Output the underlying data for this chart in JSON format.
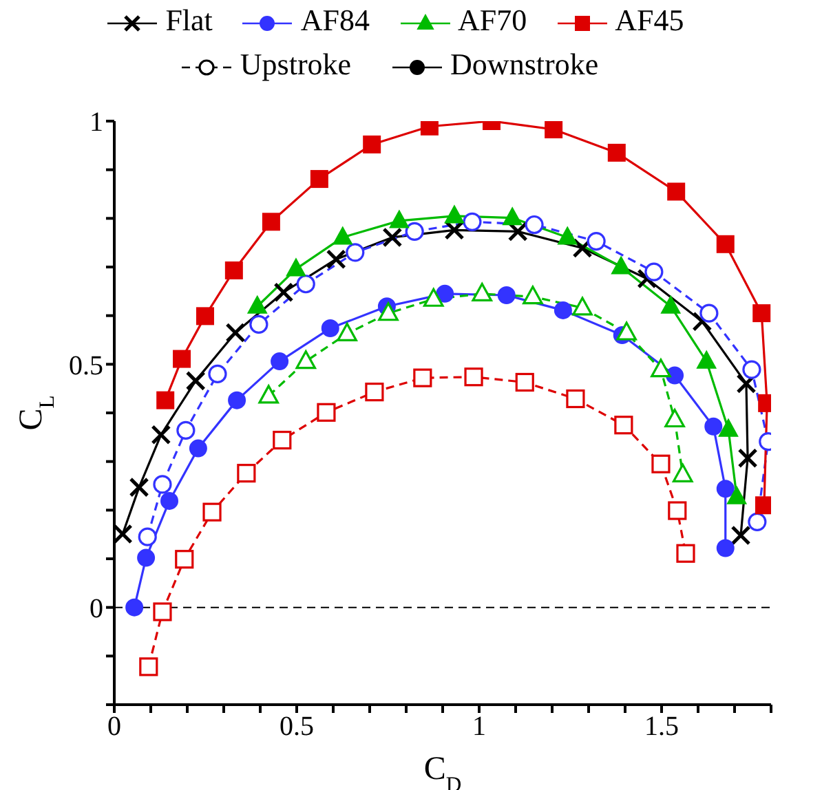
{
  "chart_data": {
    "type": "line",
    "xlabel": "C$_{D}$",
    "ylabel": "C$_{L}$",
    "xlim": [
      0,
      1.8
    ],
    "ylim": [
      -0.2,
      1
    ],
    "xticks": [
      0,
      {
        "value": 0.1,
        "label": null
      },
      {
        "value": 0.2,
        "label": null
      },
      {
        "value": 0.3,
        "label": null
      },
      {
        "value": 0.4,
        "label": null
      },
      0.5,
      {
        "value": 0.6,
        "label": null
      },
      {
        "value": 0.7,
        "label": null
      },
      {
        "value": 0.8,
        "label": null
      },
      {
        "value": 0.9,
        "label": null
      },
      1,
      {
        "value": 1.1,
        "label": null
      },
      {
        "value": 1.2,
        "label": null
      },
      {
        "value": 1.3,
        "label": null
      },
      {
        "value": 1.4,
        "label": null
      },
      1.5,
      {
        "value": 1.6,
        "label": null
      },
      {
        "value": 1.7,
        "label": null
      },
      {
        "value": 1.8,
        "label": null
      }
    ],
    "yticks": [
      {
        "value": -0.2,
        "label": null
      },
      {
        "value": -0.1,
        "label": null
      },
      0,
      {
        "value": 0.1,
        "label": null
      },
      {
        "value": 0.2,
        "label": null
      },
      {
        "value": 0.3,
        "label": null
      },
      {
        "value": 0.4,
        "label": null
      },
      0.5,
      {
        "value": 0.6,
        "label": null
      },
      {
        "value": 0.7,
        "label": null
      },
      {
        "value": 0.8,
        "label": null
      },
      {
        "value": 0.9,
        "label": null
      },
      1
    ],
    "grid": false,
    "legend": "top",
    "annotations": [
      "Upstroke",
      "Downstroke"
    ],
    "ref_lines": [
      {
        "axis": "y",
        "value": 0,
        "color": "#000000",
        "line_style": "dashed"
      }
    ],
    "series": [
      {
        "name": "Flat",
        "color": "#000000",
        "marker": "cross",
        "line_style": "solid",
        "x": [
          0.023,
          0.068,
          0.128,
          0.223,
          0.332,
          0.464,
          0.608,
          0.762,
          0.932,
          1.106,
          1.283,
          1.46,
          1.611,
          1.732,
          1.736,
          1.717
        ],
        "values": [
          0.151,
          0.247,
          0.355,
          0.466,
          0.565,
          0.648,
          0.716,
          0.761,
          0.776,
          0.773,
          0.739,
          0.676,
          0.588,
          0.46,
          0.307,
          0.148
        ]
      },
      {
        "name": "AF84",
        "color": "#3333ff",
        "marker": "circle",
        "line_style": "solid",
        "x": [
          0.055,
          0.087,
          0.151,
          0.23,
          0.336,
          0.453,
          0.592,
          0.747,
          0.906,
          1.075,
          1.23,
          1.392,
          1.536,
          1.642,
          1.675,
          1.675
        ],
        "values": [
          0,
          0.102,
          0.219,
          0.327,
          0.426,
          0.506,
          0.574,
          0.619,
          0.645,
          0.642,
          0.611,
          0.56,
          0.477,
          0.372,
          0.244,
          0.122
        ]
      },
      {
        "color": "#3333ff",
        "marker": "circle",
        "line_style": "dashed",
        "x": [
          0.091,
          0.132,
          0.196,
          0.283,
          0.396,
          0.525,
          0.66,
          0.823,
          0.981,
          1.151,
          1.321,
          1.479,
          1.63,
          1.747,
          1.792,
          1.762
        ],
        "values": [
          0.145,
          0.253,
          0.364,
          0.48,
          0.582,
          0.665,
          0.73,
          0.773,
          0.793,
          0.787,
          0.753,
          0.69,
          0.605,
          0.489,
          0.341,
          0.176
        ]
      },
      {
        "name": "AF70",
        "color": "#00bb00",
        "marker": "triangle",
        "line_style": "solid",
        "x": [
          0.392,
          0.498,
          0.626,
          0.781,
          0.932,
          1.091,
          1.242,
          1.389,
          1.525,
          1.623,
          1.683,
          1.706
        ],
        "values": [
          0.619,
          0.696,
          0.761,
          0.795,
          0.805,
          0.801,
          0.761,
          0.7,
          0.619,
          0.506,
          0.366,
          0.227
        ]
      },
      {
        "color": "#00bb00",
        "marker": "triangle",
        "line_style": "dashed",
        "x": [
          0.423,
          0.525,
          0.638,
          0.751,
          0.875,
          1.008,
          1.147,
          1.283,
          1.404,
          1.498,
          1.536,
          1.558
        ],
        "values": [
          0.435,
          0.506,
          0.563,
          0.605,
          0.634,
          0.645,
          0.639,
          0.616,
          0.565,
          0.489,
          0.386,
          0.273
        ]
      },
      {
        "name": "AF45",
        "color": "#dd0000",
        "marker": "square",
        "line_style": "solid",
        "x": [
          0.14,
          0.185,
          0.249,
          0.328,
          0.43,
          0.562,
          0.706,
          0.864,
          1.034,
          1.204,
          1.377,
          1.54,
          1.675,
          1.774,
          1.789,
          1.781
        ],
        "values": [
          0.426,
          0.511,
          0.599,
          0.693,
          0.793,
          0.881,
          0.952,
          0.989,
          1.0,
          0.983,
          0.935,
          0.855,
          0.747,
          0.605,
          0.42,
          0.21
        ]
      },
      {
        "color": "#dd0000",
        "marker": "square",
        "line_style": "dashed",
        "x": [
          0.094,
          0.132,
          0.192,
          0.268,
          0.362,
          0.46,
          0.581,
          0.713,
          0.845,
          0.985,
          1.125,
          1.264,
          1.396,
          1.498,
          1.543,
          1.566
        ],
        "values": [
          -0.122,
          -0.009,
          0.099,
          0.196,
          0.276,
          0.344,
          0.401,
          0.443,
          0.472,
          0.474,
          0.463,
          0.429,
          0.375,
          0.295,
          0.199,
          0.111
        ]
      }
    ]
  }
}
